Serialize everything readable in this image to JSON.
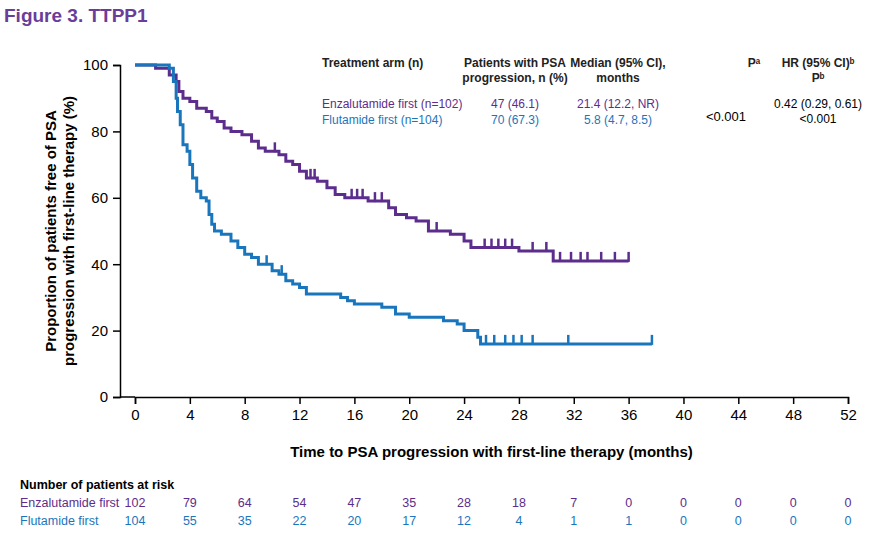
{
  "chart_data": {
    "type": "line",
    "title": "Figure 3. TTPP1",
    "x_label": "Time to PSA progression with first-line therapy (months)",
    "y_label": [
      "Proportion of patients free of PSA",
      "progression with first-line therapy (%)"
    ],
    "xlim": [
      0,
      52
    ],
    "xticks": [
      0,
      4,
      8,
      12,
      16,
      20,
      24,
      28,
      32,
      36,
      40,
      44,
      48,
      52
    ],
    "ylim": [
      0,
      100
    ],
    "yticks": [
      0,
      20,
      40,
      60,
      80,
      100
    ],
    "grid": false,
    "line_style": "step",
    "series": [
      {
        "name": "Enzalutamide first",
        "color": "#5c2d8c",
        "line_style": "step",
        "marker": "tick",
        "x": [
          0,
          1.5,
          2.5,
          3,
          3.2,
          3.5,
          4,
          4.5,
          5.2,
          5.6,
          6,
          6.5,
          7,
          7.8,
          8.5,
          9,
          9.5,
          10.5,
          11,
          11.5,
          12,
          12.5,
          13.3,
          14,
          14.6,
          15.3,
          17,
          18.5,
          19,
          19.8,
          20.5,
          21.4,
          23,
          24,
          24.5,
          28,
          30.5,
          36
        ],
        "values": [
          100,
          99,
          97,
          95,
          92,
          90,
          89,
          87,
          86,
          84,
          83,
          81,
          80,
          79,
          77,
          75,
          74,
          73,
          71,
          70,
          68,
          66,
          65,
          63,
          61,
          60,
          59,
          57,
          55,
          54,
          53,
          50,
          49,
          47,
          45,
          44,
          41,
          41
        ],
        "censored": {
          "x": [
            10.2,
            12.8,
            13.1,
            15.8,
            16.2,
            16.6,
            17.5,
            18,
            22,
            25.5,
            26,
            26.5,
            27,
            27.5,
            29,
            30,
            31,
            31.8,
            32.5,
            33,
            34,
            35,
            36
          ],
          "values": [
            74,
            66,
            66,
            60,
            60,
            60,
            59,
            59,
            50,
            45,
            45,
            45,
            45,
            45,
            44,
            44,
            41,
            41,
            41,
            41,
            41,
            41,
            41
          ]
        },
        "at_risk": [
          102,
          79,
          64,
          54,
          47,
          35,
          28,
          18,
          7,
          0,
          0,
          0,
          0,
          0
        ]
      },
      {
        "name": "Flutamide first",
        "color": "#1a76bc",
        "line_style": "step",
        "marker": "tick",
        "x": [
          0,
          2.5,
          2.8,
          3,
          3.1,
          3.3,
          3.5,
          3.8,
          4,
          4.2,
          4.5,
          4.8,
          5.2,
          5.4,
          5.6,
          5.8,
          6.3,
          7,
          7.5,
          8,
          8.5,
          9,
          10,
          10.5,
          11,
          11.5,
          12,
          12.5,
          15,
          15.5,
          16,
          18,
          19,
          20,
          22.5,
          23.5,
          24,
          25,
          25.2,
          37.7
        ],
        "values": [
          100,
          99,
          95,
          90,
          86,
          82,
          76,
          74,
          70,
          66,
          62,
          60,
          59,
          55,
          52,
          50,
          49,
          47,
          45,
          43,
          42,
          40,
          38,
          37,
          35,
          34,
          33,
          31,
          30,
          29,
          28,
          27,
          25,
          24,
          23,
          22,
          20,
          18,
          16,
          16
        ],
        "censored": {
          "x": [
            9.6,
            10.7,
            25.6,
            26.2,
            27,
            27.6,
            28.2,
            29,
            31.6,
            37.7
          ],
          "values": [
            40,
            37,
            16,
            16,
            16,
            16,
            16,
            16,
            16,
            16
          ]
        },
        "at_risk": [
          104,
          55,
          35,
          22,
          20,
          17,
          12,
          4,
          1,
          1,
          0,
          0,
          0,
          0
        ]
      }
    ],
    "at_risk_title": "Number of patients at risk",
    "table": {
      "columns": [
        [
          "Treatment arm (n)"
        ],
        [
          "Patients with PSA",
          "progression, n (%)"
        ],
        [
          "Median (95% CI),",
          "months"
        ],
        [
          "Pᵃ"
        ],
        [
          "HR (95% CI)ᵇ",
          "Pᵇ"
        ]
      ],
      "rows": [
        [
          "Enzalutamide first (n=102)",
          "47 (46.1)",
          "21.4 (12.2, NR)"
        ],
        [
          "Flutamide first (n=104)",
          "70 (67.3)",
          "5.8 (4.7, 8.5)"
        ]
      ],
      "p_value": "<0.001",
      "hr": [
        "0.42 (0.29, 0.61)",
        "<0.001"
      ]
    }
  }
}
